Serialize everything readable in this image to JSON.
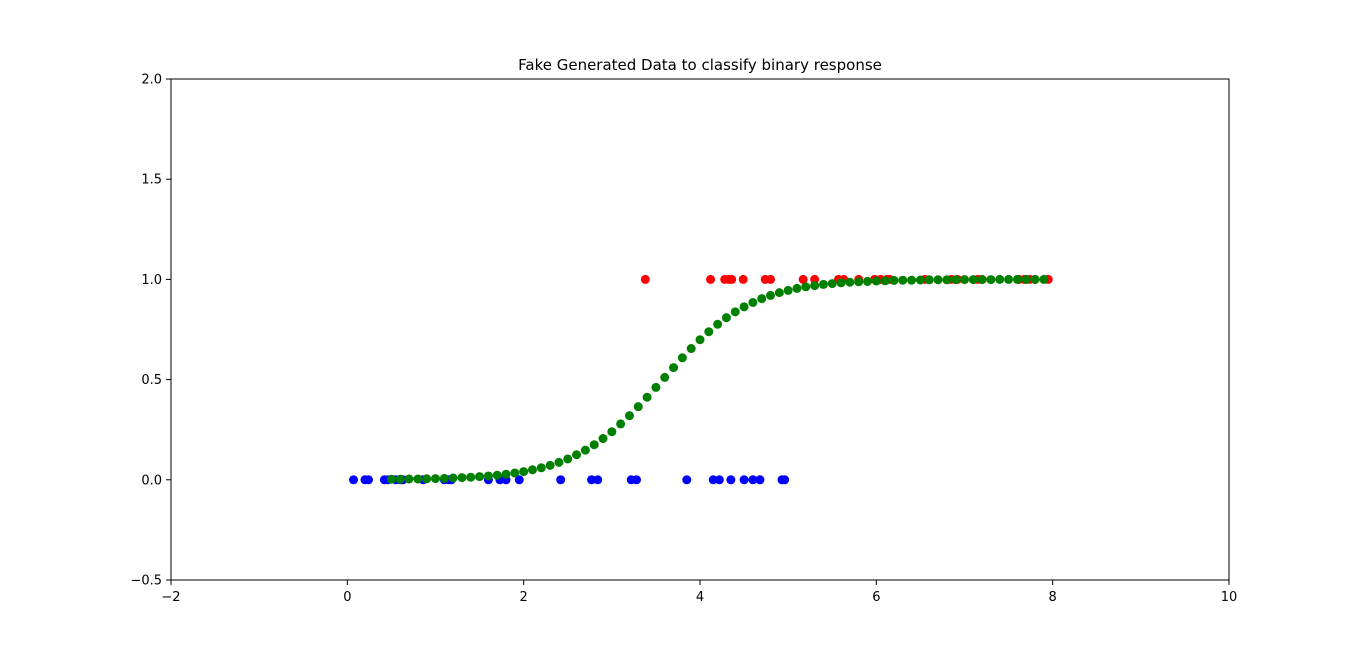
{
  "chart_data": {
    "type": "scatter",
    "title": "Fake Generated Data to classify binary response",
    "xlabel": "",
    "ylabel": "",
    "xlim": [
      -2,
      10
    ],
    "ylim": [
      -0.5,
      2.0
    ],
    "xticks": [
      -2,
      0,
      2,
      4,
      6,
      8,
      10
    ],
    "yticks": [
      -0.5,
      0.0,
      0.5,
      1.0,
      1.5,
      2.0
    ],
    "xtick_labels": [
      "−2",
      "0",
      "2",
      "4",
      "6",
      "8",
      "10"
    ],
    "ytick_labels": [
      "−0.5",
      "0.0",
      "0.5",
      "1.0",
      "1.5",
      "2.0"
    ],
    "grid": false,
    "colors": {
      "class0": "#0000ff",
      "class1": "#ff0000",
      "fit": "#008000"
    },
    "series": [
      {
        "color": "#0000ff",
        "x": [
          0.07,
          0.2,
          0.24,
          0.42,
          0.46,
          0.55,
          0.6,
          0.63,
          0.86,
          1.1,
          1.15,
          1.18,
          1.6,
          1.73,
          1.8,
          1.95,
          2.42,
          2.77,
          2.84,
          3.22,
          3.28,
          3.85,
          4.15,
          4.22,
          4.35,
          4.5,
          4.6,
          4.68,
          4.93,
          4.96
        ],
        "y": [
          0,
          0,
          0,
          0,
          0,
          0,
          0,
          0,
          0,
          0,
          0,
          0,
          0,
          0,
          0,
          0,
          0,
          0,
          0,
          0,
          0,
          0,
          0,
          0,
          0,
          0,
          0,
          0,
          0,
          0
        ]
      },
      {
        "color": "#ff0000",
        "x": [
          3.38,
          4.12,
          4.28,
          4.33,
          4.36,
          4.49,
          4.74,
          4.8,
          5.17,
          5.3,
          5.57,
          5.63,
          5.8,
          5.98,
          6.05,
          6.12,
          6.15,
          6.55,
          6.85,
          6.92,
          7.15,
          7.2,
          7.62,
          7.68,
          7.74,
          7.8,
          7.95
        ],
        "y": [
          1,
          1,
          1,
          1,
          1,
          1,
          1,
          1,
          1,
          1,
          1,
          1,
          1,
          1,
          1,
          1,
          1,
          1,
          1,
          1,
          1,
          1,
          1,
          1,
          1,
          1,
          1
        ]
      },
      {
        "color": "#008000",
        "x": [
          0.5,
          0.6,
          0.7,
          0.8,
          0.9,
          1.0,
          1.1,
          1.2,
          1.3,
          1.4,
          1.5,
          1.6,
          1.7,
          1.8,
          1.9,
          2.0,
          2.1,
          2.2,
          2.3,
          2.4,
          2.5,
          2.6,
          2.7,
          2.8,
          2.9,
          3.0,
          3.1,
          3.2,
          3.3,
          3.4,
          3.5,
          3.6,
          3.7,
          3.8,
          3.9,
          4.0,
          4.1,
          4.2,
          4.3,
          4.4,
          4.5,
          4.6,
          4.7,
          4.8,
          4.9,
          5.0,
          5.1,
          5.2,
          5.3,
          5.4,
          5.5,
          5.6,
          5.7,
          5.8,
          5.9,
          6.0,
          6.1,
          6.2,
          6.3,
          6.4,
          6.5,
          6.6,
          6.7,
          6.8,
          6.9,
          7.0,
          7.1,
          7.2,
          7.3,
          7.4,
          7.5,
          7.6,
          7.7,
          7.8,
          7.9
        ],
        "y": [
          0.003,
          0.003,
          0.004,
          0.004,
          0.005,
          0.006,
          0.007,
          0.009,
          0.011,
          0.013,
          0.016,
          0.019,
          0.023,
          0.028,
          0.034,
          0.041,
          0.05,
          0.06,
          0.072,
          0.087,
          0.104,
          0.125,
          0.148,
          0.175,
          0.206,
          0.24,
          0.279,
          0.32,
          0.365,
          0.412,
          0.461,
          0.511,
          0.56,
          0.609,
          0.655,
          0.699,
          0.739,
          0.776,
          0.809,
          0.838,
          0.863,
          0.885,
          0.904,
          0.92,
          0.934,
          0.945,
          0.955,
          0.963,
          0.969,
          0.975,
          0.979,
          0.983,
          0.986,
          0.988,
          0.99,
          0.992,
          0.993,
          0.995,
          0.996,
          0.996,
          0.997,
          0.998,
          0.998,
          0.998,
          0.999,
          0.999,
          0.999,
          0.999,
          0.999,
          1.0,
          1.0,
          1.0,
          1.0,
          1.0,
          1.0
        ]
      }
    ]
  }
}
